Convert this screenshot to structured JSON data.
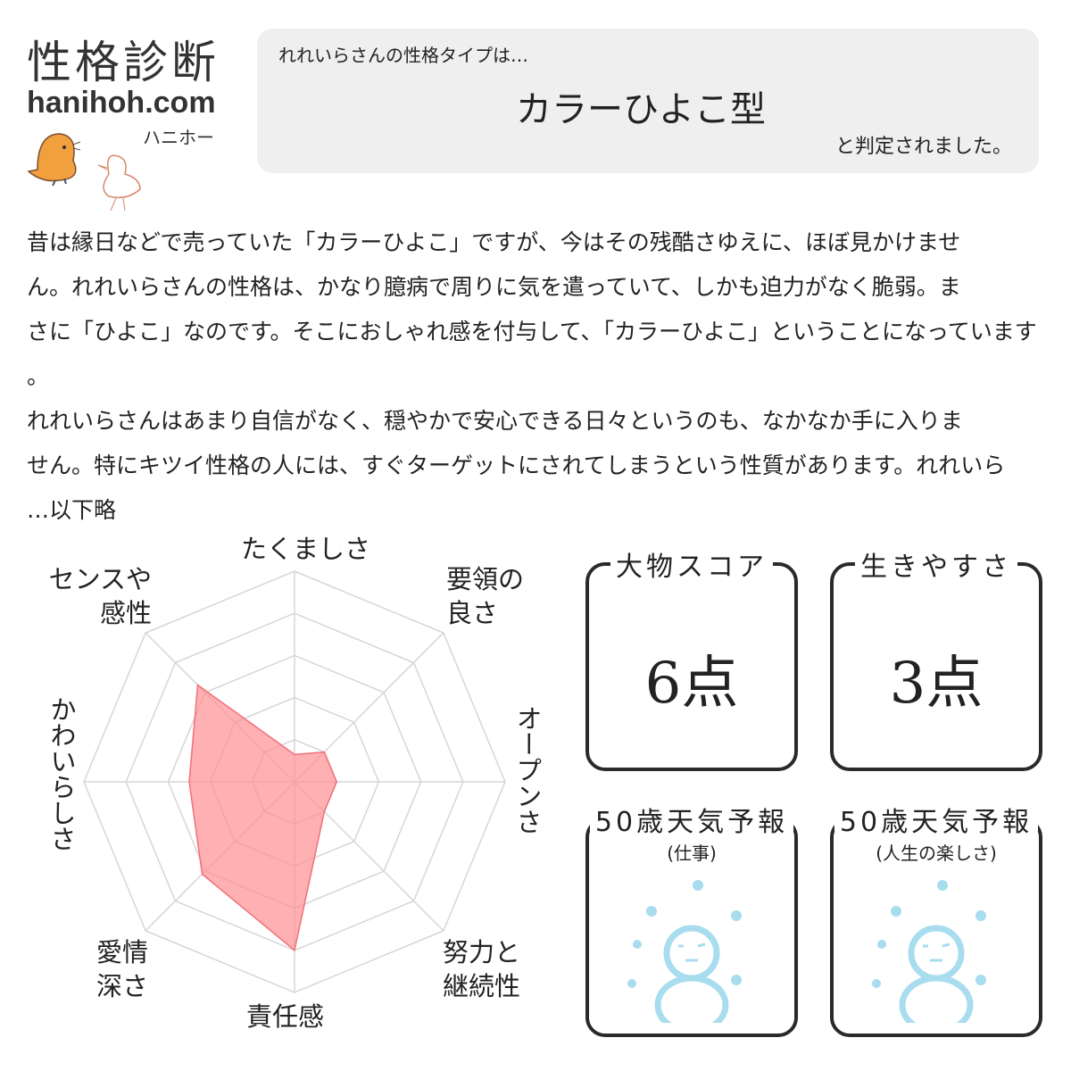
{
  "logo": {
    "title": "性格診断",
    "site": "hanihoh.com",
    "kana": "ハニホー"
  },
  "result": {
    "intro": "れれいらさんの性格タイプは…",
    "type": "カラーひよこ型",
    "suffix": "と判定されました。"
  },
  "description_lines": [
    "昔は縁日などで売っていた「カラーひよこ」ですが、今はその残酷さゆえに、ほぼ見かけませ",
    "ん。れれいらさんの性格は、かなり臆病で周りに気を遣っていて、しかも迫力がなく脆弱。ま",
    "さに「ひよこ」なのです。そこにおしゃれ感を付与して、「カラーひよこ」ということになっています",
    "。",
    "れれいらさんはあまり自信がなく、穏やかで安心できる日々というのも、なかなか手に入りま",
    "せん。特にキツイ性格の人には、すぐターゲットにされてしまうという性質があります。れれいら",
    "…以下略"
  ],
  "chart_data": {
    "type": "radar",
    "categories": [
      "たくましさ",
      "要領の良さ",
      "オープンさ",
      "努力と継続性",
      "責任感",
      "愛情深さ",
      "かわいらしさ",
      "センスや感性"
    ],
    "values": [
      1.3,
      2,
      2,
      2,
      8,
      6.2,
      5,
      6.5
    ],
    "range": [
      0,
      10
    ],
    "rings": 5,
    "fill_color": "#ff8e93",
    "grid_color": "#d6d6d6"
  },
  "scores": [
    {
      "title": "大物スコア",
      "value": "6点"
    },
    {
      "title": "生きやすさ",
      "value": "3点"
    }
  ],
  "forecasts": [
    {
      "title": "50歳天気予報",
      "subtitle": "(仕事)",
      "icon": "snowman-icon"
    },
    {
      "title": "50歳天気予報",
      "subtitle": "(人生の楽しさ)",
      "icon": "snowman-icon"
    }
  ],
  "colors": {
    "snow": "#a8dcef",
    "result_bg": "#efefef"
  }
}
